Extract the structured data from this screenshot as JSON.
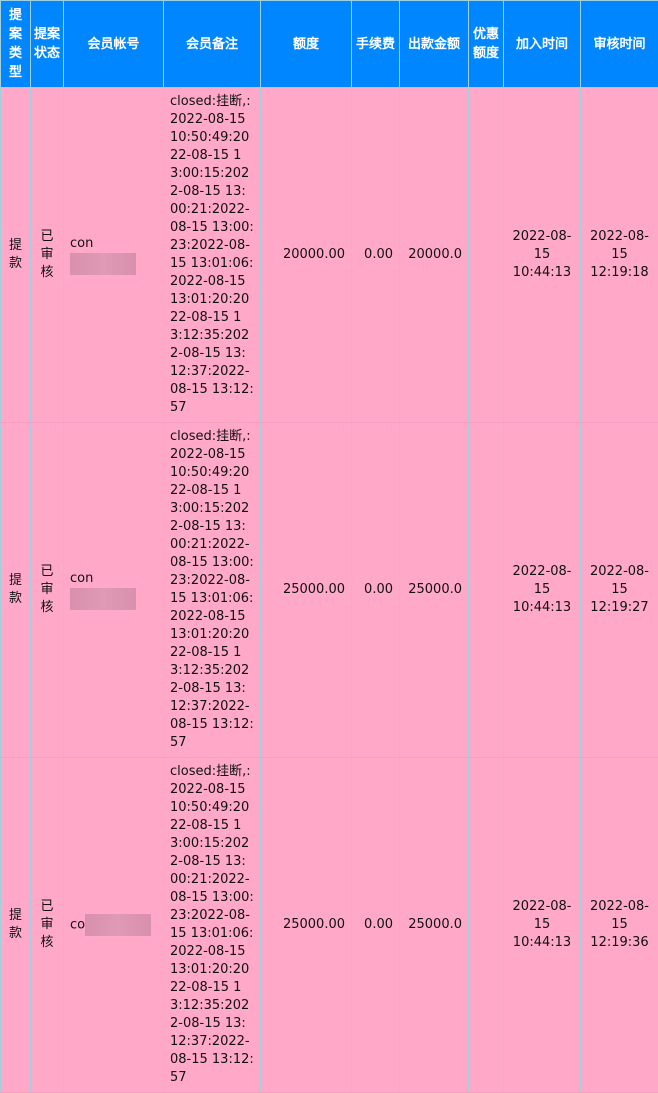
{
  "headers": [
    "提案类型",
    "提案状态",
    "会员帐号",
    "会员备注",
    "额度",
    "手续费",
    "出款金额",
    "优惠额度",
    "加入时间",
    "审核时间"
  ],
  "rows": [
    {
      "type": "提款",
      "status": "已审核",
      "account": "con",
      "remark": "closed:挂断,:2022-08-15 10:50:49:2022-08-15 13:00:15:2022-08-15 13:00:21:2022-08-15 13:00:23:2022-08-15 13:01:06:2022-08-15 13:01:20:2022-08-15 13:12:35:2022-08-15 13:12:37:2022-08-15 13:12:57",
      "amount": "20000.00",
      "fee": "0.00",
      "payout": "20000.0",
      "discount": "",
      "joined": "2022-08-15 10:44:13",
      "reviewed": "2022-08-15 12:19:18"
    },
    {
      "type": "提款",
      "status": "已审核",
      "account": "con",
      "remark": "closed:挂断,:2022-08-15 10:50:49:2022-08-15 13:00:15:2022-08-15 13:00:21:2022-08-15 13:00:23:2022-08-15 13:01:06:2022-08-15 13:01:20:2022-08-15 13:12:35:2022-08-15 13:12:37:2022-08-15 13:12:57",
      "amount": "25000.00",
      "fee": "0.00",
      "payout": "25000.0",
      "discount": "",
      "joined": "2022-08-15 10:44:13",
      "reviewed": "2022-08-15 12:19:27"
    },
    {
      "type": "提款",
      "status": "已审核",
      "account": "co",
      "remark": "closed:挂断,:2022-08-15 10:50:49:2022-08-15 13:00:15:2022-08-15 13:00:21:2022-08-15 13:00:23:2022-08-15 13:01:06:2022-08-15 13:01:20:2022-08-15 13:12:35:2022-08-15 13:12:37:2022-08-15 13:12:57",
      "amount": "25000.00",
      "fee": "0.00",
      "payout": "25000.0",
      "discount": "",
      "joined": "2022-08-15 10:44:13",
      "reviewed": "2022-08-15 12:19:36"
    }
  ]
}
